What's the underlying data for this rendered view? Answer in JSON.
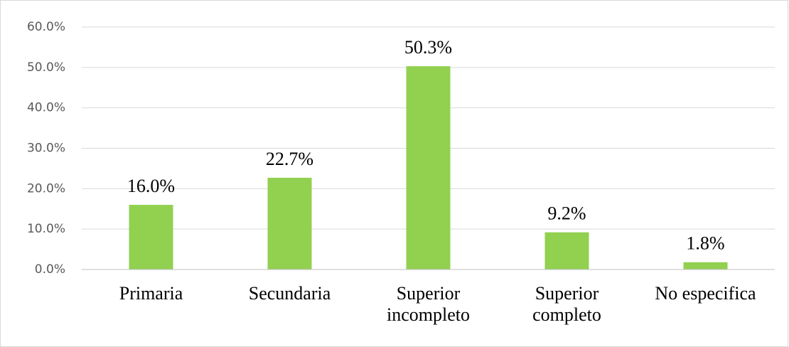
{
  "chart_data": {
    "type": "bar",
    "categories": [
      "Primaria",
      "Secundaria",
      "Superior incompleto",
      "Superior completo",
      "No especifica"
    ],
    "values": [
      16.0,
      22.7,
      50.3,
      9.2,
      1.8
    ],
    "value_labels": [
      "16.0%",
      "22.7%",
      "50.3%",
      "9.2%",
      "1.8%"
    ],
    "color": "#92d050",
    "ylim": [
      0,
      60
    ],
    "yticks": [
      {
        "value": 0,
        "label": "0.0%"
      },
      {
        "value": 10,
        "label": "10.0%"
      },
      {
        "value": 20,
        "label": "20.0%"
      },
      {
        "value": 30,
        "label": "30.0%"
      },
      {
        "value": 40,
        "label": "40.0%"
      },
      {
        "value": 50,
        "label": "50.0%"
      },
      {
        "value": 60,
        "label": "60.0%"
      }
    ],
    "grid": true
  }
}
